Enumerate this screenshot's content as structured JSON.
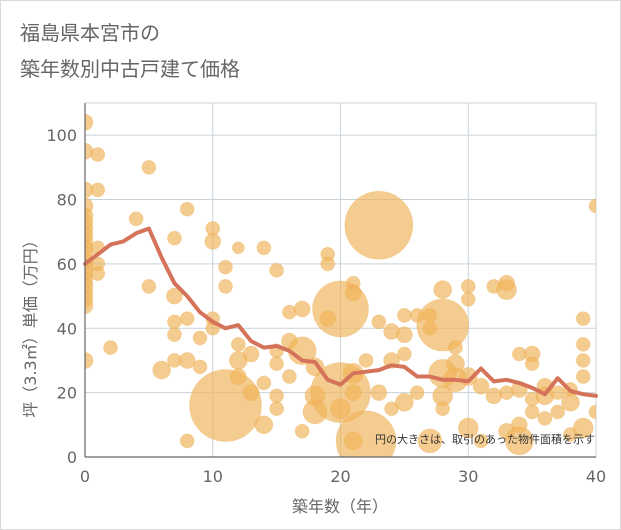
{
  "chart_data": {
    "type": "scatter",
    "title": [
      "福島県本宮市の",
      "築年数別中古戸建て価格"
    ],
    "xlabel": "築年数（年）",
    "ylabel": "坪（3.3㎡）単価（万円）",
    "xlim": [
      0,
      40
    ],
    "ylim": [
      0,
      110
    ],
    "x_ticks": [
      0,
      10,
      20,
      30,
      40
    ],
    "y_ticks": [
      0,
      20,
      40,
      60,
      80,
      100
    ],
    "grid": true,
    "note": "円の大きさは、取引のあった物件面積を示す",
    "colors": {
      "bubble": "#f0b45a",
      "line": "#d4735a",
      "grid": "#c8d3da",
      "axis": "#666666"
    },
    "bubbles": [
      {
        "x": 0,
        "y": 104,
        "size": 8
      },
      {
        "x": 0,
        "y": 95,
        "size": 8
      },
      {
        "x": 0,
        "y": 83,
        "size": 8
      },
      {
        "x": 0,
        "y": 78,
        "size": 8
      },
      {
        "x": 0,
        "y": 75,
        "size": 8
      },
      {
        "x": 0,
        "y": 73,
        "size": 8
      },
      {
        "x": 0,
        "y": 71,
        "size": 8
      },
      {
        "x": 0,
        "y": 69,
        "size": 8
      },
      {
        "x": 0,
        "y": 67,
        "size": 8
      },
      {
        "x": 0,
        "y": 65,
        "size": 8
      },
      {
        "x": 0,
        "y": 63,
        "size": 8
      },
      {
        "x": 0,
        "y": 61,
        "size": 8
      },
      {
        "x": 0,
        "y": 59,
        "size": 8
      },
      {
        "x": 0,
        "y": 57,
        "size": 8
      },
      {
        "x": 0,
        "y": 55,
        "size": 8
      },
      {
        "x": 0,
        "y": 53,
        "size": 8
      },
      {
        "x": 0,
        "y": 51,
        "size": 8
      },
      {
        "x": 0,
        "y": 49,
        "size": 8
      },
      {
        "x": 0,
        "y": 47,
        "size": 8
      },
      {
        "x": 0,
        "y": 30,
        "size": 8
      },
      {
        "x": 1,
        "y": 94,
        "size": 7
      },
      {
        "x": 1,
        "y": 83,
        "size": 7
      },
      {
        "x": 1,
        "y": 65,
        "size": 7
      },
      {
        "x": 1,
        "y": 60,
        "size": 7
      },
      {
        "x": 1,
        "y": 57,
        "size": 7
      },
      {
        "x": 2,
        "y": 34,
        "size": 7
      },
      {
        "x": 4,
        "y": 74,
        "size": 7
      },
      {
        "x": 5,
        "y": 90,
        "size": 7
      },
      {
        "x": 5,
        "y": 53,
        "size": 7
      },
      {
        "x": 6,
        "y": 27,
        "size": 9
      },
      {
        "x": 7,
        "y": 68,
        "size": 7
      },
      {
        "x": 7,
        "y": 50,
        "size": 8
      },
      {
        "x": 7,
        "y": 42,
        "size": 7
      },
      {
        "x": 7,
        "y": 38,
        "size": 7
      },
      {
        "x": 7,
        "y": 30,
        "size": 7
      },
      {
        "x": 8,
        "y": 77,
        "size": 7
      },
      {
        "x": 8,
        "y": 43,
        "size": 7
      },
      {
        "x": 8,
        "y": 30,
        "size": 8
      },
      {
        "x": 8,
        "y": 5,
        "size": 7
      },
      {
        "x": 9,
        "y": 37,
        "size": 7
      },
      {
        "x": 9,
        "y": 28,
        "size": 7
      },
      {
        "x": 10,
        "y": 71,
        "size": 7
      },
      {
        "x": 10,
        "y": 67,
        "size": 8
      },
      {
        "x": 10,
        "y": 43,
        "size": 7
      },
      {
        "x": 10,
        "y": 40,
        "size": 7
      },
      {
        "x": 11,
        "y": 59,
        "size": 7
      },
      {
        "x": 11,
        "y": 53,
        "size": 7
      },
      {
        "x": 11,
        "y": 16,
        "size": 36
      },
      {
        "x": 12,
        "y": 65,
        "size": 6
      },
      {
        "x": 12,
        "y": 35,
        "size": 7
      },
      {
        "x": 12,
        "y": 30,
        "size": 9
      },
      {
        "x": 12,
        "y": 25,
        "size": 8
      },
      {
        "x": 13,
        "y": 32,
        "size": 8
      },
      {
        "x": 13,
        "y": 20,
        "size": 8
      },
      {
        "x": 14,
        "y": 65,
        "size": 7
      },
      {
        "x": 14,
        "y": 23,
        "size": 7
      },
      {
        "x": 14,
        "y": 10,
        "size": 9
      },
      {
        "x": 15,
        "y": 58,
        "size": 7
      },
      {
        "x": 15,
        "y": 33,
        "size": 7
      },
      {
        "x": 15,
        "y": 29,
        "size": 7
      },
      {
        "x": 15,
        "y": 19,
        "size": 7
      },
      {
        "x": 15,
        "y": 15,
        "size": 7
      },
      {
        "x": 16,
        "y": 45,
        "size": 7
      },
      {
        "x": 16,
        "y": 36,
        "size": 8
      },
      {
        "x": 16,
        "y": 25,
        "size": 7
      },
      {
        "x": 17,
        "y": 46,
        "size": 8
      },
      {
        "x": 17,
        "y": 33,
        "size": 14
      },
      {
        "x": 17,
        "y": 8,
        "size": 7
      },
      {
        "x": 18,
        "y": 28,
        "size": 9
      },
      {
        "x": 18,
        "y": 19,
        "size": 10
      },
      {
        "x": 18,
        "y": 14,
        "size": 12
      },
      {
        "x": 19,
        "y": 63,
        "size": 7
      },
      {
        "x": 19,
        "y": 60,
        "size": 7
      },
      {
        "x": 19,
        "y": 43,
        "size": 8
      },
      {
        "x": 20,
        "y": 46,
        "size": 28
      },
      {
        "x": 20,
        "y": 20,
        "size": 30
      },
      {
        "x": 20,
        "y": 15,
        "size": 10
      },
      {
        "x": 21,
        "y": 54,
        "size": 7
      },
      {
        "x": 21,
        "y": 51,
        "size": 8
      },
      {
        "x": 21,
        "y": 26,
        "size": 10
      },
      {
        "x": 21,
        "y": 20,
        "size": 8
      },
      {
        "x": 21,
        "y": 5,
        "size": 9
      },
      {
        "x": 22,
        "y": 30,
        "size": 7
      },
      {
        "x": 22,
        "y": 5,
        "size": 30
      },
      {
        "x": 23,
        "y": 72,
        "size": 34
      },
      {
        "x": 23,
        "y": 42,
        "size": 7
      },
      {
        "x": 23,
        "y": 20,
        "size": 8
      },
      {
        "x": 24,
        "y": 39,
        "size": 8
      },
      {
        "x": 24,
        "y": 30,
        "size": 8
      },
      {
        "x": 24,
        "y": 15,
        "size": 7
      },
      {
        "x": 25,
        "y": 44,
        "size": 7
      },
      {
        "x": 25,
        "y": 38,
        "size": 8
      },
      {
        "x": 25,
        "y": 32,
        "size": 7
      },
      {
        "x": 25,
        "y": 17,
        "size": 9
      },
      {
        "x": 26,
        "y": 44,
        "size": 7
      },
      {
        "x": 26,
        "y": 20,
        "size": 7
      },
      {
        "x": 27,
        "y": 44,
        "size": 7
      },
      {
        "x": 27,
        "y": 40,
        "size": 7
      },
      {
        "x": 27,
        "y": 5,
        "size": 12
      },
      {
        "x": 28,
        "y": 52,
        "size": 9
      },
      {
        "x": 28,
        "y": 41,
        "size": 26
      },
      {
        "x": 28,
        "y": 26,
        "size": 14
      },
      {
        "x": 28,
        "y": 19,
        "size": 10
      },
      {
        "x": 28,
        "y": 15,
        "size": 7
      },
      {
        "x": 29,
        "y": 34,
        "size": 7
      },
      {
        "x": 29,
        "y": 29,
        "size": 9
      },
      {
        "x": 29,
        "y": 24,
        "size": 12
      },
      {
        "x": 30,
        "y": 53,
        "size": 7
      },
      {
        "x": 30,
        "y": 49,
        "size": 7
      },
      {
        "x": 30,
        "y": 25,
        "size": 9
      },
      {
        "x": 30,
        "y": 9,
        "size": 10
      },
      {
        "x": 31,
        "y": 22,
        "size": 8
      },
      {
        "x": 31,
        "y": 5,
        "size": 7
      },
      {
        "x": 32,
        "y": 53,
        "size": 7
      },
      {
        "x": 32,
        "y": 19,
        "size": 8
      },
      {
        "x": 33,
        "y": 54,
        "size": 8
      },
      {
        "x": 33,
        "y": 52,
        "size": 10
      },
      {
        "x": 33,
        "y": 20,
        "size": 7
      },
      {
        "x": 33,
        "y": 8,
        "size": 8
      },
      {
        "x": 34,
        "y": 32,
        "size": 7
      },
      {
        "x": 34,
        "y": 21,
        "size": 8
      },
      {
        "x": 34,
        "y": 10,
        "size": 8
      },
      {
        "x": 34,
        "y": 5,
        "size": 14
      },
      {
        "x": 35,
        "y": 32,
        "size": 8
      },
      {
        "x": 35,
        "y": 29,
        "size": 7
      },
      {
        "x": 35,
        "y": 18,
        "size": 7
      },
      {
        "x": 35,
        "y": 14,
        "size": 7
      },
      {
        "x": 36,
        "y": 22,
        "size": 8
      },
      {
        "x": 36,
        "y": 19,
        "size": 9
      },
      {
        "x": 36,
        "y": 12,
        "size": 7
      },
      {
        "x": 37,
        "y": 20,
        "size": 7
      },
      {
        "x": 37,
        "y": 14,
        "size": 7
      },
      {
        "x": 38,
        "y": 21,
        "size": 7
      },
      {
        "x": 38,
        "y": 17,
        "size": 9
      },
      {
        "x": 38,
        "y": 7,
        "size": 7
      },
      {
        "x": 39,
        "y": 43,
        "size": 7
      },
      {
        "x": 39,
        "y": 35,
        "size": 7
      },
      {
        "x": 39,
        "y": 30,
        "size": 7
      },
      {
        "x": 39,
        "y": 25,
        "size": 7
      },
      {
        "x": 39,
        "y": 9,
        "size": 10
      },
      {
        "x": 40,
        "y": 78,
        "size": 7
      },
      {
        "x": 40,
        "y": 14,
        "size": 7
      }
    ],
    "series": [
      {
        "x": [
          0,
          1,
          2,
          3,
          4,
          5,
          6,
          7,
          8,
          9,
          10,
          11,
          12,
          13,
          14,
          15,
          16,
          17,
          18,
          19,
          20,
          21,
          22,
          23,
          24,
          25,
          26,
          27,
          28,
          29,
          30,
          31,
          32,
          33,
          34,
          35,
          36,
          37,
          38,
          39,
          40
        ],
        "y": [
          60,
          63,
          66,
          67,
          69.5,
          71,
          62,
          54,
          50,
          45,
          42,
          40,
          41,
          36,
          34,
          34.5,
          33,
          30,
          29.5,
          24,
          22.5,
          26,
          26.5,
          27,
          28.5,
          28,
          25,
          25,
          24,
          24,
          23.5,
          27.5,
          23.5,
          24,
          23,
          21.5,
          19.5,
          24.5,
          20.5,
          19.5,
          19
        ]
      }
    ]
  }
}
